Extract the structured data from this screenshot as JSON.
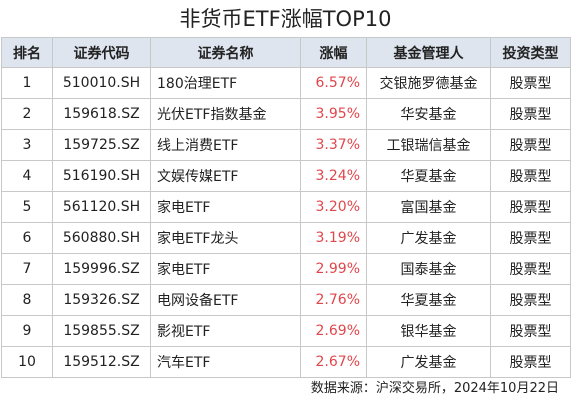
{
  "title": "非货币ETF涨幅TOP10",
  "table": {
    "headers": [
      "排名",
      "证券代码",
      "证券名称",
      "涨幅",
      "基金管理人",
      "投资类型"
    ],
    "rows": [
      [
        "1",
        "510010.SH",
        "180治理ETF",
        "6.57%",
        "交银施罗德基金",
        "股票型"
      ],
      [
        "2",
        "159618.SZ",
        "光伏ETF指数基金",
        "3.95%",
        "华安基金",
        "股票型"
      ],
      [
        "3",
        "159725.SZ",
        "线上消费ETF",
        "3.37%",
        "工银瑞信基金",
        "股票型"
      ],
      [
        "4",
        "516190.SH",
        "文娱传媒ETF",
        "3.24%",
        "华夏基金",
        "股票型"
      ],
      [
        "5",
        "561120.SH",
        "家电ETF",
        "3.20%",
        "富国基金",
        "股票型"
      ],
      [
        "6",
        "560880.SH",
        "家电ETF龙头",
        "3.19%",
        "广发基金",
        "股票型"
      ],
      [
        "7",
        "159996.SZ",
        "家电ETF",
        "2.99%",
        "国泰基金",
        "股票型"
      ],
      [
        "8",
        "159326.SZ",
        "电网设备ETF",
        "2.76%",
        "华夏基金",
        "股票型"
      ],
      [
        "9",
        "159855.SZ",
        "影视ETF",
        "2.69%",
        "银华基金",
        "股票型"
      ],
      [
        "10",
        "159512.SZ",
        "汽车ETF",
        "2.67%",
        "广发基金",
        "股票型"
      ]
    ]
  },
  "footer": "数据来源：沪深交易所，2024年10月22日"
}
